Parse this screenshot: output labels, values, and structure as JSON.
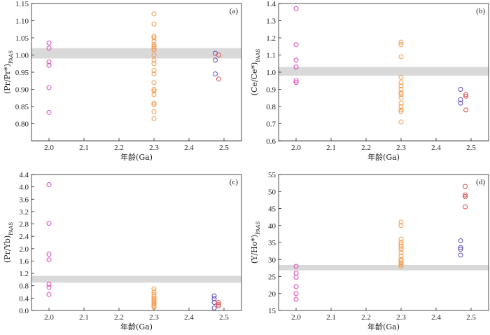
{
  "figure": {
    "colors": {
      "group_2_0": "#dd44bb",
      "group_2_3": "#f59a4a",
      "group_2_47": "#5a4ab5",
      "group_2_48": "#e04a4a",
      "band": "#d9d9d9"
    }
  },
  "chart_data": [
    {
      "type": "scatter",
      "panel_label": "(a)",
      "xlabel": "年龄(Ga)",
      "ylabel": "(Pr/Pr*)PAAS",
      "xlim": [
        1.95,
        2.55
      ],
      "ylim": [
        0.75,
        1.15
      ],
      "x_ticks": [
        "2.0",
        "2.1",
        "2.2",
        "2.3",
        "2.4",
        "2.5"
      ],
      "y_ticks": [
        "0.80",
        "0.85",
        "0.90",
        "0.95",
        "1.00",
        "1.05",
        "1.10",
        "1.15"
      ],
      "band": [
        0.99,
        1.02
      ],
      "series": [
        {
          "color_key": "group_2_0",
          "x": 2.0,
          "values": [
            1.035,
            1.02,
            0.98,
            0.97,
            0.905,
            0.833
          ]
        },
        {
          "color_key": "group_2_3",
          "x": 2.3,
          "values": [
            1.12,
            1.09,
            1.055,
            1.05,
            1.04,
            1.03,
            1.025,
            1.02,
            1.015,
            1.0,
            0.985,
            0.975,
            0.955,
            0.945,
            0.92,
            0.9,
            0.895,
            0.885,
            0.86,
            0.855,
            0.835,
            0.815
          ]
        },
        {
          "color_key": "group_2_47",
          "x": 2.475,
          "values": [
            1.005,
            0.985,
            0.945
          ]
        },
        {
          "color_key": "group_2_48",
          "x": 2.485,
          "values": [
            1.0,
            0.93
          ]
        }
      ]
    },
    {
      "type": "scatter",
      "panel_label": "(b)",
      "xlabel": "年龄(Ga)",
      "ylabel": "(Ce/Ce*)PAAS",
      "xlim": [
        1.95,
        2.55
      ],
      "ylim": [
        0.6,
        1.4
      ],
      "x_ticks": [
        "2.0",
        "2.1",
        "2.2",
        "2.3",
        "2.4",
        "2.5"
      ],
      "y_ticks": [
        "0.6",
        "0.7",
        "0.8",
        "0.9",
        "1.0",
        "1.1",
        "1.2",
        "1.3",
        "1.4"
      ],
      "band": [
        0.98,
        1.03
      ],
      "series": [
        {
          "color_key": "group_2_0",
          "x": 2.0,
          "values": [
            1.37,
            1.16,
            1.07,
            1.03,
            0.95,
            0.94
          ]
        },
        {
          "color_key": "group_2_3",
          "x": 2.3,
          "values": [
            1.175,
            1.16,
            1.09,
            0.97,
            0.94,
            0.92,
            0.9,
            0.88,
            0.87,
            0.85,
            0.82,
            0.8,
            0.78,
            0.77,
            0.71
          ]
        },
        {
          "color_key": "group_2_47",
          "x": 2.47,
          "values": [
            0.9,
            0.84,
            0.82
          ]
        },
        {
          "color_key": "group_2_48",
          "x": 2.485,
          "values": [
            0.87,
            0.86,
            0.78
          ]
        }
      ]
    },
    {
      "type": "scatter",
      "panel_label": "(c)",
      "xlabel": "年龄(Ga)",
      "ylabel": "(Pr/Yb)PAAS",
      "xlim": [
        1.95,
        2.55
      ],
      "ylim": [
        0,
        4.4
      ],
      "x_ticks": [
        "2.0",
        "2.1",
        "2.2",
        "2.3",
        "2.4",
        "2.5"
      ],
      "y_ticks": [
        "0.0",
        "0.4",
        "0.8",
        "1.2",
        "1.6",
        "2.0",
        "2.4",
        "2.8",
        "3.2",
        "3.6",
        "4.0",
        "4.4"
      ],
      "band": [
        0.9,
        1.12
      ],
      "series": [
        {
          "color_key": "group_2_0",
          "x": 2.0,
          "values": [
            4.07,
            2.82,
            1.82,
            1.64,
            0.85,
            0.75,
            0.52
          ]
        },
        {
          "color_key": "group_2_3",
          "x": 2.3,
          "values": [
            0.7,
            0.6,
            0.52,
            0.45,
            0.4,
            0.35,
            0.3,
            0.25,
            0.2,
            0.15,
            0.1
          ]
        },
        {
          "color_key": "group_2_47",
          "x": 2.472,
          "values": [
            0.47,
            0.38,
            0.26,
            0.08
          ]
        },
        {
          "color_key": "group_2_48",
          "x": 2.484,
          "values": [
            0.26,
            0.2,
            0.15
          ]
        }
      ]
    },
    {
      "type": "scatter",
      "panel_label": "(d)",
      "xlabel": "年龄(Ga)",
      "ylabel": "(Y/Ho*)PAAS",
      "xlim": [
        1.95,
        2.55
      ],
      "ylim": [
        15,
        55
      ],
      "x_ticks": [
        "2.0",
        "2.1",
        "2.2",
        "2.3",
        "2.4",
        "2.5"
      ],
      "y_ticks": [
        "15",
        "20",
        "25",
        "30",
        "35",
        "40",
        "45",
        "50",
        "55"
      ],
      "band": [
        26.8,
        28.4
      ],
      "series": [
        {
          "color_key": "group_2_0",
          "x": 2.0,
          "values": [
            28.0,
            26.0,
            24.8,
            22.0,
            20.0,
            18.3
          ]
        },
        {
          "color_key": "group_2_3",
          "x": 2.3,
          "values": [
            41.0,
            40.0,
            36.0,
            35.0,
            34.3,
            33.7,
            33.0,
            32.0,
            31.0,
            30.0,
            29.5,
            29.0,
            28.5,
            28.0
          ]
        },
        {
          "color_key": "group_2_47",
          "x": 2.47,
          "values": [
            35.5,
            33.5,
            33.0,
            31.3
          ]
        },
        {
          "color_key": "group_2_48",
          "x": 2.483,
          "values": [
            51.5,
            49.0,
            48.5,
            45.5
          ]
        }
      ]
    }
  ]
}
